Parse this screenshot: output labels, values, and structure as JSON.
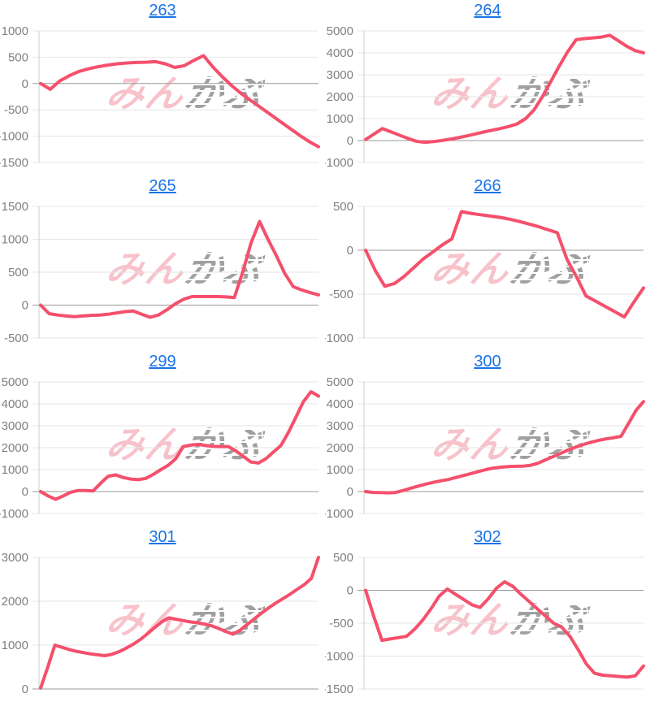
{
  "page": {
    "background": "#ffffff"
  },
  "style": {
    "line_color": "#f4506c",
    "grid_line": "#e6e6e6",
    "zero_line": "#999999",
    "axis_line": "#cccccc",
    "tick_color": "#808080",
    "title_color": "#1a73e8",
    "watermark_pink": "rgba(236,110,128,0.42)",
    "watermark_gray": "rgba(128,128,128,0.72)"
  },
  "watermark": {
    "pink": "みん",
    "gray": "かぶ"
  },
  "chart_data": [
    {
      "type": "line",
      "title": "263",
      "ylim": [
        -1500,
        1000
      ],
      "ticks": [
        1000,
        500,
        0,
        -500,
        -1000,
        -1500
      ],
      "values": [
        0,
        -110,
        50,
        150,
        230,
        280,
        320,
        350,
        375,
        390,
        400,
        405,
        415,
        375,
        305,
        340,
        440,
        530,
        310,
        120,
        -50,
        -200,
        -330,
        -460,
        -590,
        -720,
        -850,
        -980,
        -1100,
        -1200
      ]
    },
    {
      "type": "line",
      "title": "264",
      "ylim": [
        -1000,
        5000
      ],
      "ticks": [
        5000,
        4000,
        3000,
        2000,
        1000,
        0,
        -1000
      ],
      "values": [
        50,
        300,
        550,
        400,
        250,
        100,
        -30,
        -80,
        -50,
        0,
        60,
        130,
        210,
        300,
        390,
        470,
        550,
        640,
        760,
        1000,
        1400,
        2000,
        2700,
        3400,
        4050,
        4600,
        4650,
        4680,
        4720,
        4800,
        4550,
        4300,
        4100,
        4000
      ]
    },
    {
      "type": "line",
      "title": "265",
      "ylim": [
        -500,
        1500
      ],
      "ticks": [
        1500,
        1000,
        500,
        0,
        -500
      ],
      "values": [
        0,
        -130,
        -150,
        -165,
        -175,
        -165,
        -155,
        -150,
        -140,
        -120,
        -100,
        -90,
        -140,
        -185,
        -150,
        -70,
        20,
        90,
        130,
        130,
        130,
        130,
        125,
        115,
        500,
        950,
        1270,
        1000,
        750,
        480,
        280,
        230,
        190,
        155
      ]
    },
    {
      "type": "line",
      "title": "266",
      "ylim": [
        -1000,
        500
      ],
      "ticks": [
        500,
        0,
        -500,
        -1000
      ],
      "values": [
        0,
        -230,
        -410,
        -380,
        -300,
        -200,
        -100,
        -20,
        60,
        130,
        440,
        420,
        405,
        390,
        375,
        355,
        330,
        300,
        270,
        235,
        200,
        -100,
        -300,
        -520,
        -580,
        -640,
        -700,
        -760,
        -590,
        -430
      ]
    },
    {
      "type": "line",
      "title": "299",
      "ylim": [
        -1000,
        5000
      ],
      "ticks": [
        5000,
        4000,
        3000,
        2000,
        1000,
        0,
        -1000
      ],
      "values": [
        0,
        -200,
        -350,
        -200,
        -30,
        50,
        50,
        30,
        380,
        700,
        760,
        640,
        570,
        540,
        600,
        780,
        1000,
        1200,
        1500,
        2050,
        2120,
        2150,
        2100,
        2060,
        2050,
        2050,
        1850,
        1600,
        1350,
        1300,
        1500,
        1800,
        2100,
        2700,
        3400,
        4100,
        4550,
        4350
      ]
    },
    {
      "type": "line",
      "title": "300",
      "ylim": [
        -1000,
        5000
      ],
      "ticks": [
        5000,
        4000,
        3000,
        2000,
        1000,
        0,
        -1000
      ],
      "values": [
        0,
        -40,
        -50,
        -60,
        -40,
        50,
        150,
        250,
        340,
        420,
        490,
        550,
        640,
        730,
        820,
        910,
        1000,
        1070,
        1110,
        1140,
        1150,
        1160,
        1200,
        1300,
        1450,
        1600,
        1750,
        1900,
        2030,
        2150,
        2250,
        2330,
        2400,
        2450,
        2520,
        3100,
        3700,
        4100
      ]
    },
    {
      "type": "line",
      "title": "301",
      "ylim": [
        0,
        3000
      ],
      "ticks": [
        3000,
        2000,
        1000,
        0
      ],
      "values": [
        20,
        500,
        1000,
        950,
        900,
        860,
        830,
        800,
        780,
        760,
        790,
        850,
        930,
        1020,
        1130,
        1260,
        1400,
        1530,
        1620,
        1590,
        1560,
        1530,
        1510,
        1480,
        1440,
        1380,
        1310,
        1250,
        1340,
        1470,
        1600,
        1730,
        1850,
        1960,
        2060,
        2160,
        2270,
        2380,
        2520,
        3000
      ]
    },
    {
      "type": "line",
      "title": "302",
      "ylim": [
        -1500,
        500
      ],
      "ticks": [
        500,
        0,
        -500,
        -1000,
        -1500
      ],
      "values": [
        0,
        -400,
        -760,
        -740,
        -720,
        -700,
        -590,
        -450,
        -280,
        -90,
        20,
        -60,
        -140,
        -220,
        -260,
        -130,
        30,
        130,
        60,
        -60,
        -170,
        -280,
        -390,
        -500,
        -560,
        -700,
        -900,
        -1120,
        -1260,
        -1290,
        -1300,
        -1310,
        -1320,
        -1300,
        -1150
      ]
    }
  ]
}
